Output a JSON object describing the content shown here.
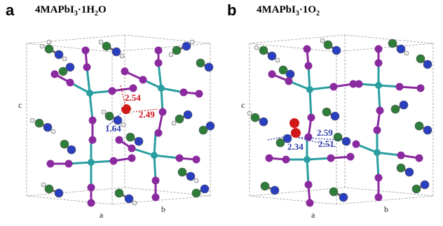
{
  "panels": [
    {
      "letter": "a",
      "title_main": "4MAPbI",
      "title_sub": "3",
      "title_rest": "·1H",
      "title_sub2": "2",
      "title_end": "O",
      "axis_labels": {
        "c": "c",
        "a": "a",
        "b": "b"
      },
      "distances_red": [
        "2.54",
        "2.49"
      ],
      "distances_blue": [
        "1.64"
      ]
    },
    {
      "letter": "b",
      "title_main": "4MAPbI",
      "title_sub": "3",
      "title_rest": "·1O",
      "title_sub2": "2",
      "title_end": "",
      "axis_labels": {
        "c": "c",
        "a": "a",
        "b": "b"
      },
      "distances_red": [],
      "distances_blue": [
        "2.59",
        "2.34",
        "2.51"
      ]
    }
  ],
  "colors": {
    "iodine": "#8a2a9e",
    "lead": "#2a9ea0",
    "carbon": "#2e7d3a",
    "nitrogen": "#2a3fbf",
    "hydrogen": "#e8e8e8",
    "oxygen": "#d01818",
    "cell_edge": "#9a9a9a"
  }
}
